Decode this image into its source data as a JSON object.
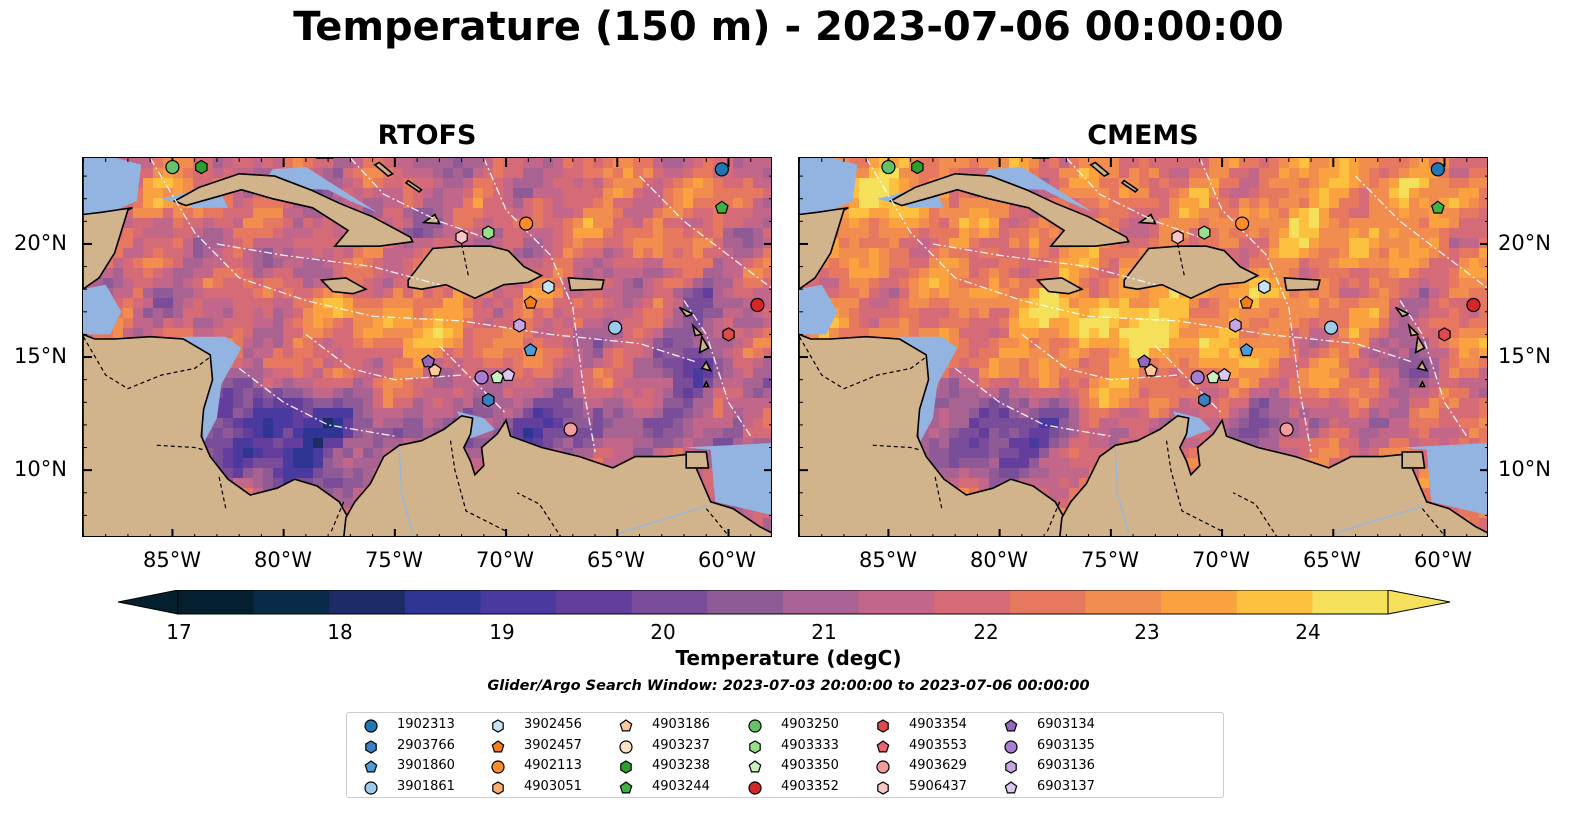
{
  "title": "Temperature (150 m) - 2023-07-06 00:00:00",
  "panels": [
    {
      "title": "RTOFS"
    },
    {
      "title": "CMEMS"
    }
  ],
  "x_ticks": [
    "85°W",
    "80°W",
    "75°W",
    "70°W",
    "65°W",
    "60°W"
  ],
  "y_ticks": [
    "20°N",
    "15°N",
    "10°N"
  ],
  "colorbar": {
    "label": "Temperature (degC)",
    "ticks": [
      "17",
      "18",
      "19",
      "20",
      "21",
      "22",
      "23",
      "24"
    ],
    "colors": [
      "#04202e",
      "#0a2a4a",
      "#1b2c67",
      "#2e3592",
      "#4a3aa0",
      "#633e9c",
      "#7a4d9a",
      "#8e5b97",
      "#a96392",
      "#c2668a",
      "#d66b78",
      "#e6785f",
      "#f18d4f",
      "#f9a23f",
      "#fcc13e",
      "#f4e05a"
    ]
  },
  "search_window": "Glider/Argo Search Window: 2023-07-03 20:00:00 to 2023-07-06 00:00:00",
  "legend": [
    {
      "label": "1902313",
      "shape": "circle",
      "color": "#1f77b4"
    },
    {
      "label": "2903766",
      "shape": "hexagon",
      "color": "#3a7fc1"
    },
    {
      "label": "3901860",
      "shape": "pentagon",
      "color": "#4a9bd6"
    },
    {
      "label": "3901861",
      "shape": "circle",
      "color": "#9ecae9"
    },
    {
      "label": "3902456",
      "shape": "hexagon",
      "color": "#c6e2f5"
    },
    {
      "label": "3902457",
      "shape": "pentagon",
      "color": "#f57f17"
    },
    {
      "label": "4902113",
      "shape": "circle",
      "color": "#fb8c2c"
    },
    {
      "label": "4903051",
      "shape": "hexagon",
      "color": "#fdae6b"
    },
    {
      "label": "4903186",
      "shape": "pentagon",
      "color": "#fdc99a"
    },
    {
      "label": "4903237",
      "shape": "circle",
      "color": "#fde0c5"
    },
    {
      "label": "4903238",
      "shape": "hexagon",
      "color": "#2ca02c"
    },
    {
      "label": "4903244",
      "shape": "pentagon",
      "color": "#3fb33f"
    },
    {
      "label": "4903250",
      "shape": "circle",
      "color": "#66c266"
    },
    {
      "label": "4903333",
      "shape": "hexagon",
      "color": "#98df8a"
    },
    {
      "label": "4903350",
      "shape": "pentagon",
      "color": "#c9f0c1"
    },
    {
      "label": "4903352",
      "shape": "circle",
      "color": "#d62728"
    },
    {
      "label": "4903354",
      "shape": "hexagon",
      "color": "#df4a4a"
    },
    {
      "label": "4903553",
      "shape": "pentagon",
      "color": "#e8636d"
    },
    {
      "label": "4903629",
      "shape": "circle",
      "color": "#f29c9c"
    },
    {
      "label": "5906437",
      "shape": "hexagon",
      "color": "#f9c6c6"
    },
    {
      "label": "6903134",
      "shape": "pentagon",
      "color": "#9467bd"
    },
    {
      "label": "6903135",
      "shape": "circle",
      "color": "#a77dd1"
    },
    {
      "label": "6903136",
      "shape": "hexagon",
      "color": "#c5a5e5"
    },
    {
      "label": "6903137",
      "shape": "pentagon",
      "color": "#dcc6f2"
    }
  ],
  "map_colors": {
    "land": "#d2b48c",
    "shallow": "#93b4e0",
    "deep_pacific": "#04202e",
    "coast": "#000000"
  }
}
